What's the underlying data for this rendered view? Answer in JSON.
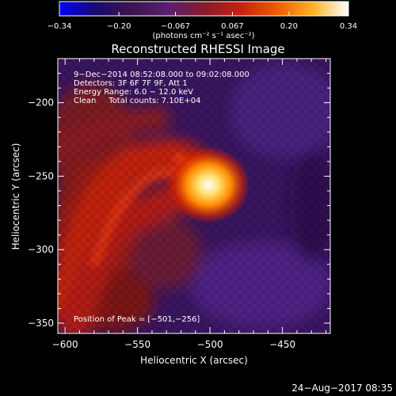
{
  "chart_data": {
    "type": "heatmap",
    "title": "Reconstructed RHESSI Image",
    "xlabel": "Heliocentric X (arcsec)",
    "ylabel": "Heliocentric Y (arcsec)",
    "xlim": [
      -605,
      -417
    ],
    "ylim": [
      -357,
      -170
    ],
    "x_ticks": [
      {
        "v": -600,
        "label": "−600"
      },
      {
        "v": -550,
        "label": "−550"
      },
      {
        "v": -500,
        "label": "−500"
      },
      {
        "v": -450,
        "label": "−450"
      }
    ],
    "y_ticks": [
      {
        "v": -200,
        "label": "−200"
      },
      {
        "v": -250,
        "label": "−250"
      },
      {
        "v": -300,
        "label": "−300"
      },
      {
        "v": -350,
        "label": "−350"
      }
    ],
    "colorbar": {
      "min": -0.34,
      "max": 0.34,
      "ticks": [
        {
          "v": -0.34,
          "label": "−0.34"
        },
        {
          "v": -0.2,
          "label": "−0.20"
        },
        {
          "v": -0.067,
          "label": "−0.067"
        },
        {
          "v": 0.067,
          "label": "0.067"
        },
        {
          "v": 0.2,
          "label": "0.20"
        },
        {
          "v": 0.34,
          "label": "0.34"
        }
      ],
      "unit_label": "(photons cm⁻² s⁻¹ asec⁻²)",
      "colors": [
        "#0000ff",
        "#1a0a70",
        "#3c1450",
        "#5a1e72",
        "#8a1a2a",
        "#c81e10",
        "#f05a00",
        "#ffb020",
        "#ffffff"
      ]
    },
    "annotations": [
      "9−Dec−2014 08:52:08.000 to 09:02:08.000",
      "Detectors: 3F 6F 7F 9F, Att 1",
      "Energy Range: 6.0 − 12.0 keV",
      "Clean     Total counts: 7.10E+04"
    ],
    "peak_label": "Position of Peak = [−501,−256]",
    "peak": {
      "x": -501,
      "y": -256
    },
    "features": [
      {
        "kind": "peak-source",
        "x": -501,
        "y": -256
      },
      {
        "kind": "emission-arc",
        "path": [
          [
            -596,
            -337
          ],
          [
            -582,
            -300
          ],
          [
            -570,
            -265
          ],
          [
            -560,
            -232
          ],
          [
            -540,
            -215
          ],
          [
            -515,
            -225
          ],
          [
            -503,
            -245
          ]
        ]
      }
    ]
  },
  "footer": {
    "date": "24−Aug−2017 08:35"
  }
}
